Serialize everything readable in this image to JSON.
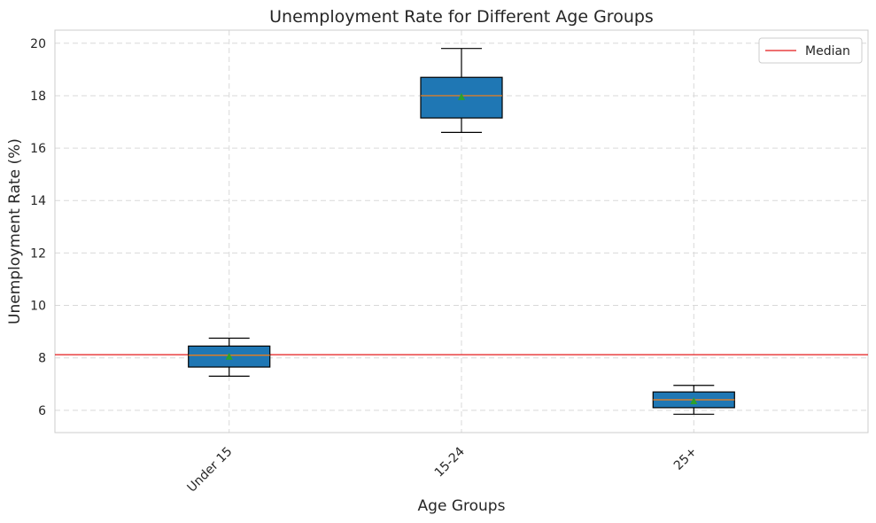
{
  "chart_data": {
    "type": "box",
    "title": "Unemployment Rate for Different Age Groups",
    "xlabel": "Age Groups",
    "ylabel": "Unemployment Rate (%)",
    "categories": [
      "Under 15",
      "15-24",
      "25+"
    ],
    "ylim": [
      5.15,
      20.5
    ],
    "yticks": [
      6,
      8,
      10,
      12,
      14,
      16,
      18,
      20
    ],
    "grid": true,
    "legend": {
      "position": "top-right",
      "entries": [
        "Median"
      ]
    },
    "boxes": [
      {
        "category": "Under 15",
        "whisker_low": 7.3,
        "q1": 7.65,
        "median": 8.1,
        "q3": 8.45,
        "whisker_high": 8.75,
        "mean": 8.05
      },
      {
        "category": "15-24",
        "whisker_low": 16.6,
        "q1": 17.15,
        "median": 18.0,
        "q3": 18.7,
        "whisker_high": 19.8,
        "mean": 17.95
      },
      {
        "category": "25+",
        "whisker_low": 5.85,
        "q1": 6.1,
        "median": 6.4,
        "q3": 6.7,
        "whisker_high": 6.95,
        "mean": 6.35
      }
    ],
    "reference_line": {
      "label": "Median",
      "value": 8.12,
      "color": "#e41a1c"
    },
    "colors": {
      "box_fill": "#1f77b4",
      "median_line": "#ff7f0e",
      "mean_marker": "#2ca02c",
      "reference_line": "#e41a1c",
      "grid": "#d9d9d9"
    }
  }
}
